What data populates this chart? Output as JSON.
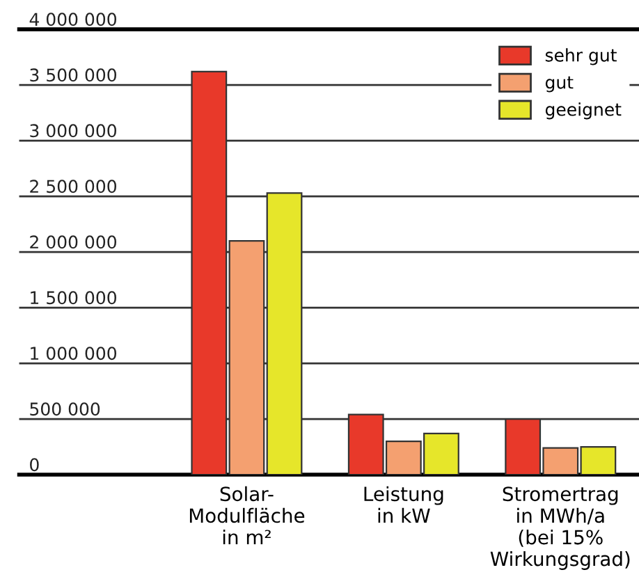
{
  "chart_data": {
    "type": "bar",
    "categories": [
      "Solar-\nModulfläche\nin m²",
      "Leistung\nin kW",
      "Stromertrag\nin MWh/a\n(bei 15%\nWirkungsgrad)"
    ],
    "series": [
      {
        "name": "sehr gut",
        "color": "#e8392a",
        "values": [
          3620000,
          540000,
          500000
        ]
      },
      {
        "name": "gut",
        "color": "#f4a070",
        "values": [
          2100000,
          300000,
          240000
        ]
      },
      {
        "name": "geeignet",
        "color": "#e6e62a",
        "values": [
          2530000,
          370000,
          250000
        ]
      }
    ],
    "ylim": [
      0,
      4000000
    ],
    "yticks": [
      {
        "value": 0,
        "label": "0"
      },
      {
        "value": 500000,
        "label": "500 000"
      },
      {
        "value": 1000000,
        "label": "1 000 000"
      },
      {
        "value": 1500000,
        "label": "1 500 000"
      },
      {
        "value": 2000000,
        "label": "2 000 000"
      },
      {
        "value": 2500000,
        "label": "2 500 000"
      },
      {
        "value": 3000000,
        "label": "3 000 000"
      },
      {
        "value": 3500000,
        "label": "3 500 000"
      },
      {
        "value": 4000000,
        "label": "4 000 000"
      }
    ],
    "grid": "y",
    "legend": "top right"
  }
}
